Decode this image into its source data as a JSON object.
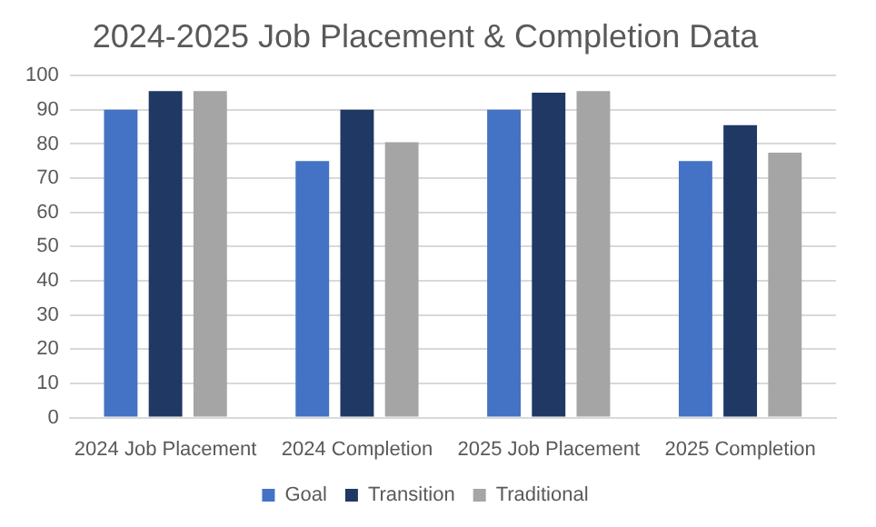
{
  "chart_data": {
    "type": "bar",
    "title": "2024-2025 Job Placement & Completion Data",
    "categories": [
      "2024 Job Placement",
      "2024 Completion",
      "2025 Job Placement",
      "2025 Completion"
    ],
    "series": [
      {
        "name": "Goal",
        "color": "#4472c4",
        "values": [
          90,
          75,
          90,
          75
        ]
      },
      {
        "name": "Transition",
        "color": "#203864",
        "values": [
          95.5,
          90,
          95,
          85.5
        ]
      },
      {
        "name": "Traditional",
        "color": "#a5a5a5",
        "values": [
          95.5,
          80.5,
          95.5,
          77.5
        ]
      }
    ],
    "ylim": [
      0,
      100
    ],
    "yticks": [
      0,
      10,
      20,
      30,
      40,
      50,
      60,
      70,
      80,
      90,
      100
    ],
    "grid": "y",
    "legend": "bottom"
  }
}
